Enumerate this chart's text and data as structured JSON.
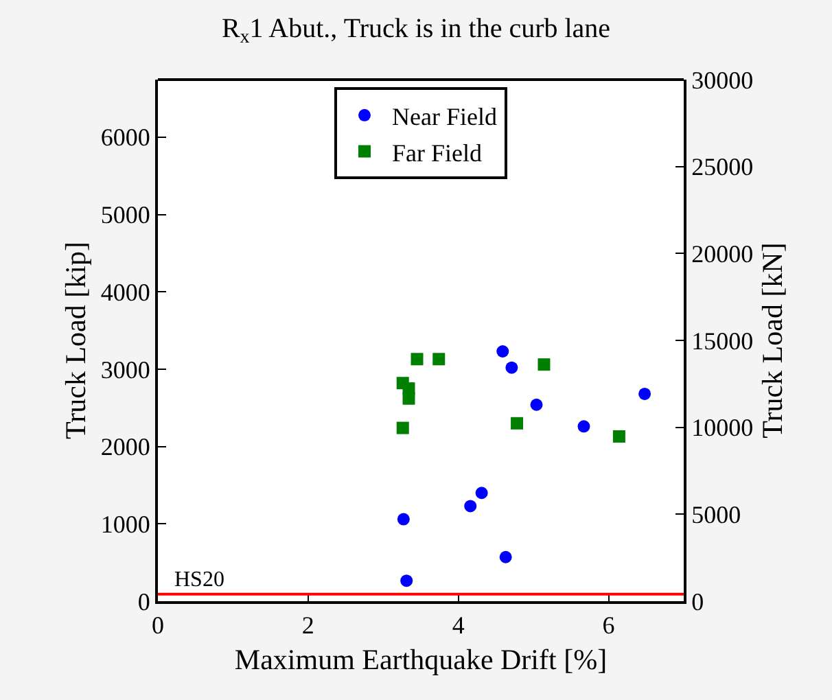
{
  "chart_data": {
    "type": "scatter",
    "title": "R$_{x}$1 Abut., Truck is in the curb lane",
    "xlabel": "Maximum Earthquake Drift [%]",
    "ylabel": "Truck Load [kip]",
    "y2label": "Truck Load [kN]",
    "xlim": [
      0,
      7
    ],
    "xticks": [
      0,
      2,
      4,
      6
    ],
    "ylim": [
      0,
      6744
    ],
    "yticks": [
      0,
      1000,
      2000,
      3000,
      4000,
      5000,
      6000
    ],
    "y2lim": [
      0,
      30000
    ],
    "y2ticks": [
      0,
      5000,
      10000,
      15000,
      20000,
      25000,
      30000
    ],
    "grid": false,
    "legend": "top",
    "line_style": "none",
    "series": [
      {
        "name": "Near Field",
        "color": "#0000ff",
        "marker": "circle",
        "x": [
          4.59,
          4.71,
          5.04,
          6.48,
          5.67,
          3.27,
          4.16,
          4.31,
          4.63,
          3.31
        ],
        "values": [
          3230,
          3020,
          2540,
          2680,
          2260,
          1060,
          1230,
          1400,
          570,
          265
        ]
      },
      {
        "name": "Far Field",
        "color": "#008000",
        "marker": "square",
        "x": [
          3.45,
          3.74,
          5.14,
          3.26,
          3.34,
          3.34,
          3.26,
          4.78,
          6.14
        ],
        "values": [
          3130,
          3130,
          3060,
          2820,
          2750,
          2620,
          2240,
          2300,
          2130
        ]
      }
    ],
    "ref_lines": [
      {
        "axis": "y",
        "value": 90,
        "label": "HS20",
        "color": "#ff0000",
        "line_style": "solid"
      }
    ]
  }
}
